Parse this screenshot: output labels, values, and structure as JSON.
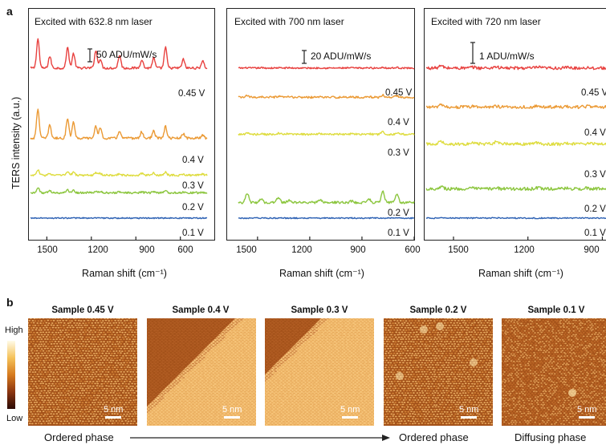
{
  "panel_a_label": "a",
  "panel_b_label": "b",
  "y_axis_label": "TERS intensity (a.u.)",
  "colorbar": {
    "high": "High",
    "low": "Low"
  },
  "chart_data": [
    {
      "type": "line",
      "title": "Excited with 632.8 nm laser",
      "scale_label": "50 ADU/mW/s",
      "xlabel": "Raman shift (cm⁻¹)",
      "ylabel": "TERS intensity (a.u.)",
      "x_reversed": true,
      "xlim": [
        1610,
        420
      ],
      "x_ticks": [
        "1500",
        "1200",
        "900",
        "600"
      ],
      "peaks": [
        1560,
        1480,
        1360,
        1320,
        1170,
        1140,
        1010,
        860,
        780,
        700,
        580,
        450
      ],
      "series": [
        {
          "name": "0.45 V",
          "color": "#e8413f",
          "offset": 0.84,
          "peak_heights": [
            1.0,
            0.4,
            0.7,
            0.5,
            0.6,
            0.3,
            0.45,
            0.3,
            0.35,
            0.7,
            0.3,
            0.25
          ],
          "noise": 0.012
        },
        {
          "name": "0.4 V",
          "color": "#eb9a35",
          "offset": 0.48,
          "peak_heights": [
            1.0,
            0.45,
            0.7,
            0.55,
            0.4,
            0.35,
            0.25,
            0.22,
            0.25,
            0.4,
            0.15,
            0.12
          ],
          "noise": 0.012
        },
        {
          "name": "0.3 V",
          "color": "#dedc3e",
          "offset": 0.29,
          "peak_heights": [
            0.18,
            0.06,
            0.12,
            0.1,
            0.1,
            0.06,
            0.06,
            0.06,
            0.08,
            0.1,
            0.05,
            0.04
          ],
          "noise": 0.01
        },
        {
          "name": "0.2 V",
          "color": "#8cc63f",
          "offset": 0.2,
          "peak_heights": [
            0.18,
            0.06,
            0.1,
            0.08,
            0.05,
            0.04,
            0.03,
            0.03,
            0.03,
            0.05,
            0.02,
            0.02
          ],
          "noise": 0.01
        },
        {
          "name": "0.1 V",
          "color": "#2e62b4",
          "offset": 0.07,
          "peak_heights": [
            0.01,
            0,
            0,
            0,
            0,
            0,
            0,
            0,
            0,
            0,
            0,
            0
          ],
          "noise": 0.006
        }
      ]
    },
    {
      "type": "line",
      "title": "Excited with 700 nm laser",
      "scale_label": "20 ADU/mW/s",
      "xlabel": "Raman shift (cm⁻¹)",
      "ylabel": "",
      "x_reversed": true,
      "xlim": [
        1610,
        600
      ],
      "x_ticks": [
        "1500",
        "1200",
        "900",
        "600"
      ],
      "peaks": [
        1560,
        1480,
        1380,
        1320,
        1140,
        960,
        860,
        780,
        700
      ],
      "series": [
        {
          "name": "0.45 V",
          "color": "#e8413f",
          "offset": 0.84,
          "peak_heights": [
            0.01,
            0.01,
            0.01,
            0.01,
            0.01,
            0.01,
            0.01,
            0.03,
            0.02
          ],
          "noise": 0.008
        },
        {
          "name": "0.4 V",
          "color": "#eb9a35",
          "offset": 0.69,
          "peak_heights": [
            0.05,
            0.02,
            0.03,
            0.02,
            0.02,
            0.02,
            0.02,
            0.07,
            0.06
          ],
          "noise": 0.01
        },
        {
          "name": "0.3 V",
          "color": "#dedc3e",
          "offset": 0.5,
          "peak_heights": [
            0.04,
            0.02,
            0.03,
            0.02,
            0.02,
            0.02,
            0.02,
            0.08,
            0.05
          ],
          "noise": 0.01
        },
        {
          "name": "0.2 V",
          "color": "#8cc63f",
          "offset": 0.15,
          "peak_heights": [
            0.32,
            0.12,
            0.18,
            0.06,
            0.1,
            0.05,
            0.12,
            0.38,
            0.3
          ],
          "noise": 0.012
        },
        {
          "name": "0.1 V",
          "color": "#2e62b4",
          "offset": 0.07,
          "peak_heights": [
            0,
            0,
            0,
            0,
            0,
            0,
            0,
            0,
            0
          ],
          "noise": 0.006
        }
      ]
    },
    {
      "type": "line",
      "title": "Excited with 720 nm laser",
      "scale_label": "1 ADU/mW/s",
      "xlabel": "Raman shift (cm⁻¹)",
      "ylabel": "",
      "x_reversed": true,
      "xlim": [
        1610,
        840
      ],
      "x_ticks": [
        "1500",
        "1200",
        "900"
      ],
      "peaks": [
        1550,
        1420,
        1330,
        1160,
        1040,
        960
      ],
      "series": [
        {
          "name": "0.45 V",
          "color": "#e8413f",
          "offset": 0.84,
          "peak_heights": [
            0.07,
            0.03,
            0.05,
            0.03,
            0.02,
            0.02
          ],
          "noise": 0.016
        },
        {
          "name": "0.4 V",
          "color": "#eb9a35",
          "offset": 0.64,
          "peak_heights": [
            0.06,
            0.02,
            0.04,
            0.03,
            0.02,
            0.02
          ],
          "noise": 0.016
        },
        {
          "name": "0.3 V",
          "color": "#dedc3e",
          "offset": 0.45,
          "peak_heights": [
            0.1,
            0.03,
            0.06,
            0.04,
            0.02,
            0.02
          ],
          "noise": 0.016
        },
        {
          "name": "0.2 V",
          "color": "#8cc63f",
          "offset": 0.22,
          "peak_heights": [
            0.08,
            0.02,
            0.05,
            0.03,
            0.02,
            0.02
          ],
          "noise": 0.016
        },
        {
          "name": "0.1 V",
          "color": "#2e62b4",
          "offset": 0.07,
          "peak_heights": [
            0.01,
            0,
            0.01,
            0,
            0,
            0
          ],
          "noise": 0.006
        }
      ]
    }
  ],
  "stm_images": [
    {
      "title": "Sample 0.45 V",
      "scale": "5 nm",
      "style": "stripes"
    },
    {
      "title": "Sample 0.4 V",
      "scale": "5 nm",
      "style": "terrace"
    },
    {
      "title": "Sample 0.3 V",
      "scale": "5 nm",
      "style": "terrace2"
    },
    {
      "title": "Sample 0.2 V",
      "scale": "5 nm",
      "style": "dots"
    },
    {
      "title": "Sample 0.1 V",
      "scale": "5 nm",
      "style": "diffuse"
    }
  ],
  "phases": {
    "left": "Ordered phase",
    "middle": "Ordered phase",
    "right": "Diffusing  phase"
  }
}
